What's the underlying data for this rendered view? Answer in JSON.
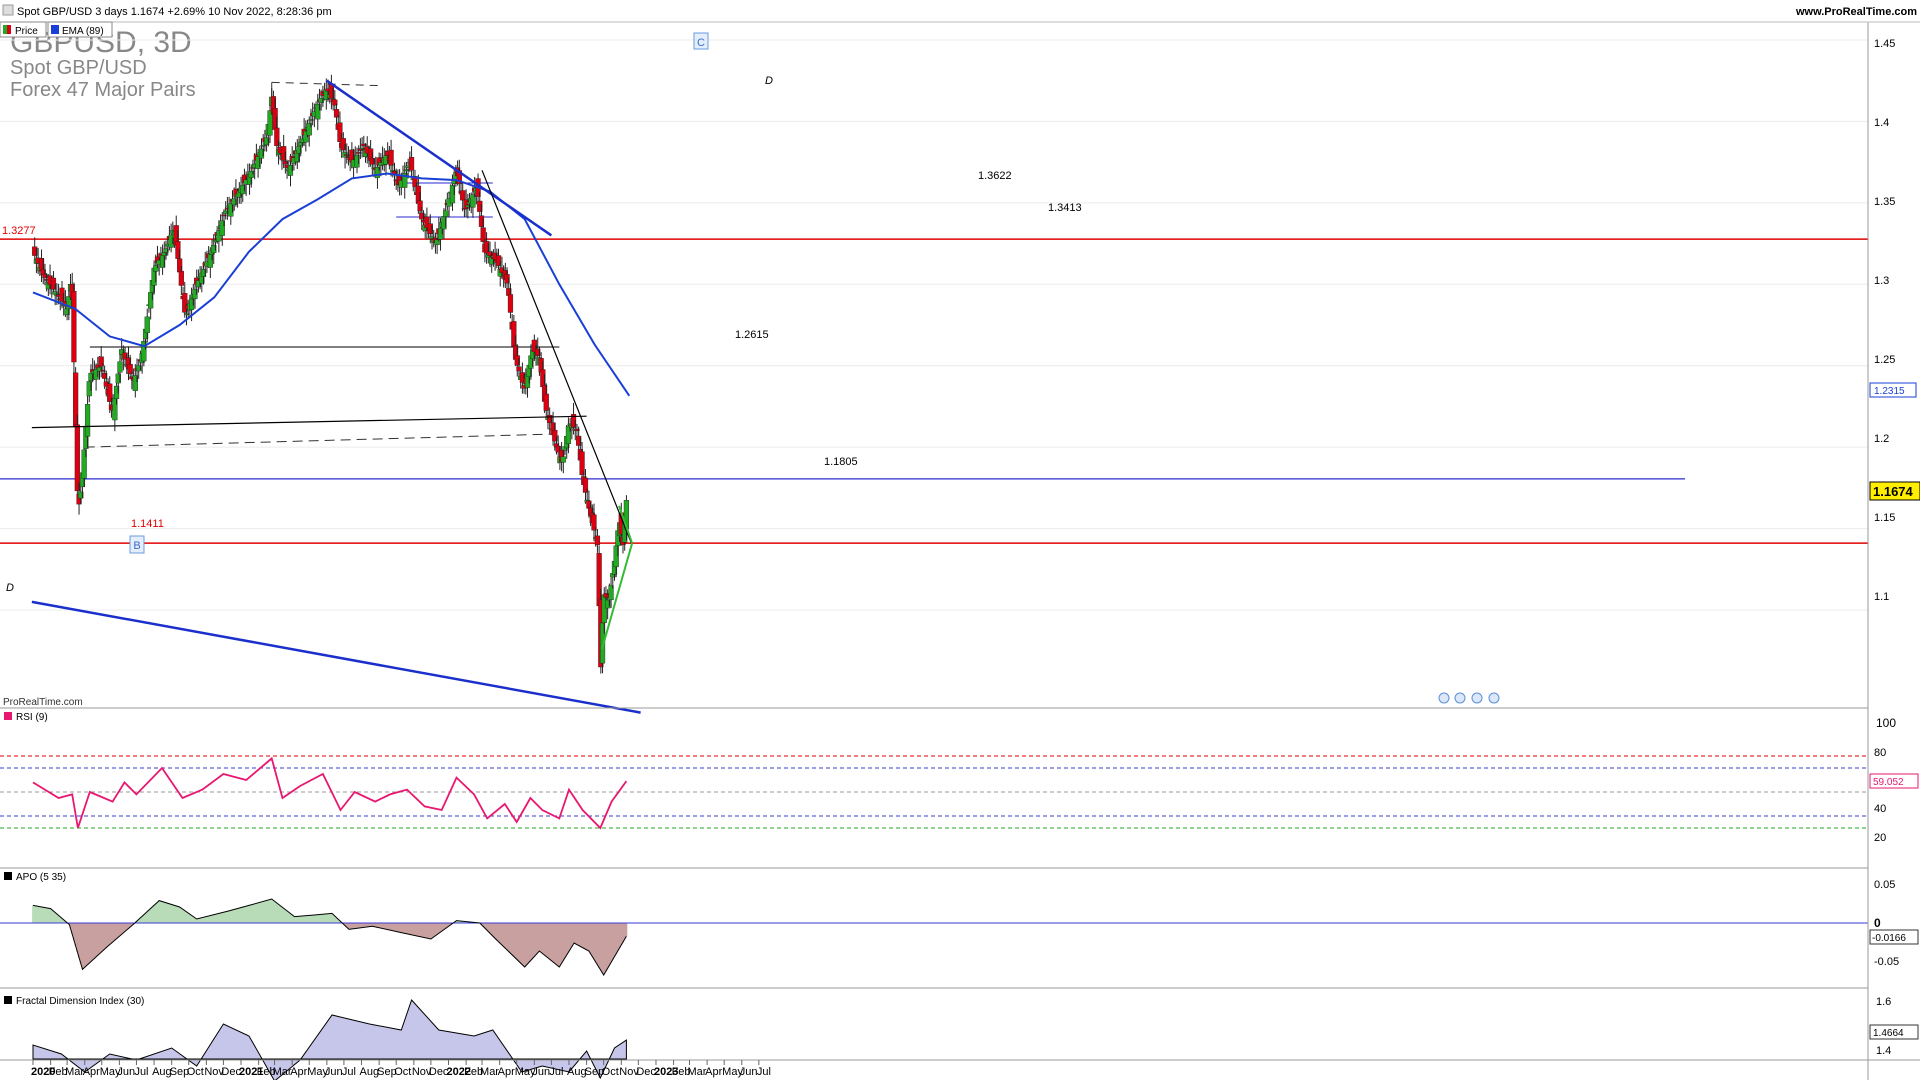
{
  "header": {
    "title": "Spot GBP/USD 3 days 1.1674 +2.69% 10 Nov 2022, 8:28:36 pm",
    "site": "www.ProRealTime.com",
    "legend_price": "Price",
    "legend_ema": "EMA (89)"
  },
  "watermark": {
    "symbol": "GBPUSD, 3D",
    "name": "Spot GBP/USD",
    "group": "Forex 47 Major Pairs",
    "credit": "ProRealTime.com"
  },
  "colors": {
    "up": "#22aa22",
    "down": "#dd0011",
    "ema": "#1a3fd6",
    "trend": "#1a2fcc",
    "level_red": "#e00000",
    "level_blue": "#2a2ad0",
    "triangle": "#33bb33",
    "rsi": "#e8176f",
    "apo_pos": "#b8dcb8",
    "apo_neg": "#c8a0a0",
    "fdi": "#c6c6ea",
    "price_tag": "#ffee00"
  },
  "annotations": {
    "wave_c": "C",
    "wave_b": "B",
    "wave_d_top": "D",
    "wave_d_left": "D",
    "lvl_13622": "1.3622",
    "lvl_13413": "1.3413",
    "lvl_12615": "1.2615",
    "lvl_11805": "1.1805",
    "lvl_11411": "1.1411",
    "lvl_13277": "1.3277"
  },
  "price_axis": {
    "ticks": [
      "1.45",
      "1.4",
      "1.35",
      "1.3",
      "1.25",
      "1.2",
      "1.15",
      "1.1"
    ],
    "ema_value": "1.2315",
    "last_price": "1.1674"
  },
  "rsi_panel": {
    "label": "RSI (9)",
    "ticks": [
      "100",
      "80",
      "60",
      "40",
      "20"
    ],
    "last_value": "59.052"
  },
  "apo_panel": {
    "label": "APO (5 35)",
    "ticks": [
      "0.05",
      "0",
      "-0.05"
    ],
    "last_value": "-0.0166"
  },
  "fdi_panel": {
    "label": "Fractal Dimension Index (30)",
    "ticks": [
      "1.6",
      "1.4"
    ],
    "last_value": "1.4664"
  },
  "time_axis": [
    "2020",
    "Feb",
    "Mar",
    "Apr",
    "May",
    "Jun",
    "Jul",
    "Aug",
    "Sep",
    "Oct",
    "Nov",
    "Dec",
    "2021",
    "Feb",
    "Mar",
    "Apr",
    "May",
    "Jun",
    "Jul",
    "Aug",
    "Sep",
    "Oct",
    "Nov",
    "Dec",
    "2022",
    "Feb",
    "Mar",
    "Apr",
    "May",
    "Jun",
    "Jul",
    "Aug",
    "Sep",
    "Oct",
    "Nov",
    "Dec",
    "2023",
    "Feb",
    "Mar",
    "Apr",
    "May",
    "Jun",
    "Jul"
  ],
  "chart_data": {
    "type": "candlestick",
    "instrument": "Spot GBP/USD",
    "timeframe": "3 days",
    "ylim": [
      1.03,
      1.455
    ],
    "price_path": [
      [
        "2020-01-01",
        1.32
      ],
      [
        "2020-01-20",
        1.305
      ],
      [
        "2020-02-10",
        1.295
      ],
      [
        "2020-03-01",
        1.285
      ],
      [
        "2020-03-09",
        1.305
      ],
      [
        "2020-03-20",
        1.16
      ],
      [
        "2020-03-26",
        1.175
      ],
      [
        "2020-04-10",
        1.245
      ],
      [
        "2020-05-01",
        1.25
      ],
      [
        "2020-05-20",
        1.22
      ],
      [
        "2020-06-05",
        1.26
      ],
      [
        "2020-06-25",
        1.24
      ],
      [
        "2020-07-10",
        1.255
      ],
      [
        "2020-08-01",
        1.31
      ],
      [
        "2020-08-20",
        1.32
      ],
      [
        "2020-09-05",
        1.335
      ],
      [
        "2020-09-25",
        1.28
      ],
      [
        "2020-10-15",
        1.3
      ],
      [
        "2020-11-10",
        1.32
      ],
      [
        "2020-12-05",
        1.345
      ],
      [
        "2020-12-25",
        1.355
      ],
      [
        "2021-01-20",
        1.37
      ],
      [
        "2021-02-15",
        1.39
      ],
      [
        "2021-02-24",
        1.415
      ],
      [
        "2021-03-05",
        1.385
      ],
      [
        "2021-03-25",
        1.37
      ],
      [
        "2021-04-20",
        1.39
      ],
      [
        "2021-05-15",
        1.41
      ],
      [
        "2021-06-01",
        1.42
      ],
      [
        "2021-06-15",
        1.41
      ],
      [
        "2021-06-25",
        1.385
      ],
      [
        "2021-07-15",
        1.375
      ],
      [
        "2021-08-05",
        1.385
      ],
      [
        "2021-08-25",
        1.37
      ],
      [
        "2021-09-15",
        1.38
      ],
      [
        "2021-10-05",
        1.36
      ],
      [
        "2021-10-25",
        1.375
      ],
      [
        "2021-11-15",
        1.34
      ],
      [
        "2021-12-10",
        1.325
      ],
      [
        "2021-12-31",
        1.35
      ],
      [
        "2022-01-15",
        1.37
      ],
      [
        "2022-01-30",
        1.345
      ],
      [
        "2022-02-20",
        1.36
      ],
      [
        "2022-03-05",
        1.32
      ],
      [
        "2022-03-25",
        1.315
      ],
      [
        "2022-04-15",
        1.3
      ],
      [
        "2022-04-28",
        1.255
      ],
      [
        "2022-05-15",
        1.235
      ],
      [
        "2022-05-28",
        1.26
      ],
      [
        "2022-06-10",
        1.255
      ],
      [
        "2022-06-20",
        1.225
      ],
      [
        "2022-07-10",
        1.2
      ],
      [
        "2022-07-20",
        1.19
      ],
      [
        "2022-08-01",
        1.215
      ],
      [
        "2022-08-15",
        1.21
      ],
      [
        "2022-08-25",
        1.18
      ],
      [
        "2022-09-10",
        1.155
      ],
      [
        "2022-09-20",
        1.14
      ],
      [
        "2022-09-26",
        1.065
      ],
      [
        "2022-10-01",
        1.11
      ],
      [
        "2022-10-10",
        1.105
      ],
      [
        "2022-10-20",
        1.13
      ],
      [
        "2022-10-28",
        1.155
      ],
      [
        "2022-11-04",
        1.14
      ],
      [
        "2022-11-10",
        1.1674
      ]
    ],
    "ema_89": [
      [
        "2020-01-01",
        1.295
      ],
      [
        "2020-03-15",
        1.285
      ],
      [
        "2020-05-15",
        1.268
      ],
      [
        "2020-07-15",
        1.262
      ],
      [
        "2020-09-15",
        1.275
      ],
      [
        "2020-11-15",
        1.292
      ],
      [
        "2021-01-15",
        1.32
      ],
      [
        "2021-03-15",
        1.34
      ],
      [
        "2021-05-15",
        1.352
      ],
      [
        "2021-07-15",
        1.365
      ],
      [
        "2021-09-15",
        1.368
      ],
      [
        "2021-11-15",
        1.365
      ],
      [
        "2022-01-15",
        1.364
      ],
      [
        "2022-03-15",
        1.357
      ],
      [
        "2022-05-15",
        1.34
      ],
      [
        "2022-07-15",
        1.3
      ],
      [
        "2022-09-15",
        1.263
      ],
      [
        "2022-11-15",
        1.2315
      ]
    ],
    "annotation_levels": [
      {
        "label": "1.3277",
        "value": 1.3277,
        "color": "red"
      },
      {
        "label": "1.3622",
        "value": 1.3622
      },
      {
        "label": "1.3413",
        "value": 1.3413
      },
      {
        "label": "1.2615",
        "value": 1.2615
      },
      {
        "label": "1.1805",
        "value": 1.1805,
        "color": "blue"
      },
      {
        "label": "1.1411",
        "value": 1.1411,
        "color": "red"
      }
    ],
    "trendlines": [
      {
        "from": [
          "2021-06-01",
          1.425
        ],
        "to": [
          "2022-07-01",
          1.33
        ],
        "color": "blue"
      },
      {
        "from": [
          "2019-12-30",
          1.105
        ],
        "to": [
          "2022-12-05",
          1.037
        ],
        "color": "blue"
      },
      {
        "from": [
          "2022-03-01",
          1.37
        ],
        "to": [
          "2022-11-20",
          1.14
        ],
        "color": "black"
      },
      {
        "from": [
          "2019-12-30",
          1.212
        ],
        "to": [
          "2022-09-01",
          1.219
        ],
        "color": "black"
      },
      {
        "from": [
          "2022-09-28",
          1.076
        ],
        "to": [
          "2022-11-20",
          1.141
        ],
        "color": "green"
      },
      {
        "from": [
          "2022-10-28",
          1.164
        ],
        "to": [
          "2022-11-20",
          1.141
        ],
        "color": "green"
      }
    ],
    "rsi": {
      "ylim": [
        0,
        100
      ],
      "levels": [
        80,
        70,
        50,
        30,
        20
      ],
      "path": [
        [
          "2020-01-01",
          58
        ],
        [
          "2020-02-15",
          45
        ],
        [
          "2020-03-10",
          48
        ],
        [
          "2020-03-20",
          20
        ],
        [
          "2020-04-10",
          50
        ],
        [
          "2020-05-20",
          42
        ],
        [
          "2020-06-10",
          58
        ],
        [
          "2020-07-01",
          48
        ],
        [
          "2020-08-15",
          70
        ],
        [
          "2020-09-20",
          45
        ],
        [
          "2020-10-25",
          52
        ],
        [
          "2020-12-01",
          65
        ],
        [
          "2021-01-10",
          60
        ],
        [
          "2021-02-24",
          78
        ],
        [
          "2021-03-15",
          45
        ],
        [
          "2021-04-15",
          55
        ],
        [
          "2021-05-25",
          65
        ],
        [
          "2021-06-25",
          35
        ],
        [
          "2021-07-20",
          50
        ],
        [
          "2021-08-25",
          42
        ],
        [
          "2021-09-20",
          48
        ],
        [
          "2021-10-20",
          52
        ],
        [
          "2021-11-20",
          38
        ],
        [
          "2021-12-20",
          35
        ],
        [
          "2022-01-15",
          62
        ],
        [
          "2022-02-15",
          48
        ],
        [
          "2022-03-10",
          28
        ],
        [
          "2022-04-10",
          40
        ],
        [
          "2022-05-01",
          25
        ],
        [
          "2022-05-25",
          45
        ],
        [
          "2022-06-15",
          35
        ],
        [
          "2022-07-15",
          28
        ],
        [
          "2022-08-01",
          52
        ],
        [
          "2022-08-25",
          35
        ],
        [
          "2022-09-25",
          20
        ],
        [
          "2022-10-15",
          42
        ],
        [
          "2022-11-10",
          59.052
        ]
      ]
    },
    "apo": {
      "ylim": [
        -0.07,
        0.07
      ],
      "path": [
        [
          "2020-01-01",
          0.022
        ],
        [
          "2020-02-01",
          0.018
        ],
        [
          "2020-03-05",
          -0.002
        ],
        [
          "2020-03-28",
          -0.058
        ],
        [
          "2020-05-10",
          -0.03
        ],
        [
          "2020-06-25",
          -0.002
        ],
        [
          "2020-08-10",
          0.028
        ],
        [
          "2020-09-15",
          0.02
        ],
        [
          "2020-10-15",
          0.005
        ],
        [
          "2020-12-10",
          0.015
        ],
        [
          "2021-01-15",
          0.022
        ],
        [
          "2021-02-24",
          0.03
        ],
        [
          "2021-04-05",
          0.008
        ],
        [
          "2021-05-10",
          0.01
        ],
        [
          "2021-06-10",
          0.012
        ],
        [
          "2021-07-10",
          -0.008
        ],
        [
          "2021-08-20",
          -0.004
        ],
        [
          "2021-10-10",
          -0.012
        ],
        [
          "2021-12-01",
          -0.02
        ],
        [
          "2022-01-15",
          0.003
        ],
        [
          "2022-02-25",
          0.0
        ],
        [
          "2022-03-25",
          -0.02
        ],
        [
          "2022-05-15",
          -0.055
        ],
        [
          "2022-06-10",
          -0.035
        ],
        [
          "2022-07-15",
          -0.055
        ],
        [
          "2022-08-10",
          -0.025
        ],
        [
          "2022-09-05",
          -0.035
        ],
        [
          "2022-10-01",
          -0.065
        ],
        [
          "2022-11-10",
          -0.0166
        ]
      ]
    },
    "fdi": {
      "ylim": [
        1.3,
        1.65
      ],
      "path": [
        [
          "2020-01-01",
          1.45
        ],
        [
          "2020-02-20",
          1.42
        ],
        [
          "2020-04-01",
          1.36
        ],
        [
          "2020-05-15",
          1.42
        ],
        [
          "2020-07-01",
          1.4
        ],
        [
          "2020-09-01",
          1.44
        ],
        [
          "2020-10-15",
          1.38
        ],
        [
          "2020-12-01",
          1.52
        ],
        [
          "2021-01-15",
          1.48
        ],
        [
          "2021-03-01",
          1.33
        ],
        [
          "2021-04-15",
          1.4
        ],
        [
          "2021-06-10",
          1.55
        ],
        [
          "2021-08-15",
          1.52
        ],
        [
          "2021-10-10",
          1.5
        ],
        [
          "2021-10-28",
          1.6
        ],
        [
          "2021-12-15",
          1.5
        ],
        [
          "2022-02-15",
          1.48
        ],
        [
          "2022-03-20",
          1.5
        ],
        [
          "2022-05-10",
          1.36
        ],
        [
          "2022-06-15",
          1.38
        ],
        [
          "2022-08-01",
          1.36
        ],
        [
          "2022-09-01",
          1.43
        ],
        [
          "2022-09-25",
          1.34
        ],
        [
          "2022-10-20",
          1.44
        ],
        [
          "2022-11-10",
          1.4664
        ]
      ]
    }
  }
}
